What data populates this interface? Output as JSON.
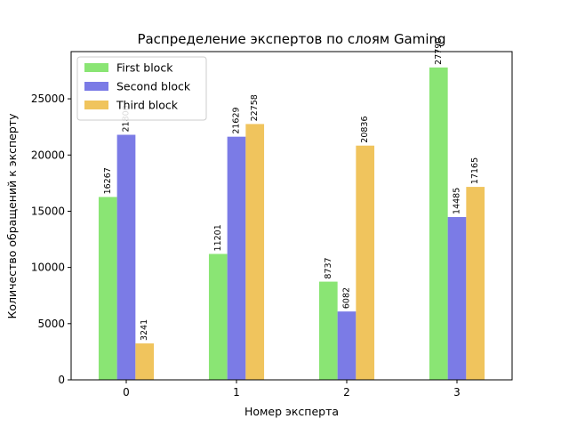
{
  "chart_data": {
    "type": "bar",
    "title": "Распределение экспертов по слоям Gaming",
    "xlabel": "Номер эксперта",
    "ylabel": "Количество обращений к эксперту",
    "categories": [
      "0",
      "1",
      "2",
      "3"
    ],
    "ylim": [
      0,
      29200
    ],
    "yticks": [
      0,
      5000,
      10000,
      15000,
      20000,
      25000
    ],
    "ytick_labels": [
      "0",
      "5000",
      "10000",
      "15000",
      "20000",
      "25000"
    ],
    "grid": false,
    "legend_position": "top-left",
    "series": [
      {
        "name": "First block",
        "color": "#8ae574",
        "values": [
          16267,
          11201,
          8737,
          27790
        ],
        "value_labels": [
          "16267",
          "11201",
          "8737",
          "27790"
        ]
      },
      {
        "name": "Second block",
        "color": "#7b7be6",
        "values": [
          21800,
          21629,
          6082,
          14485
        ],
        "value_labels": [
          "21800",
          "21629",
          "6082",
          "14485"
        ]
      },
      {
        "name": "Third block",
        "color": "#f0c45d",
        "values": [
          3241,
          22758,
          20836,
          17165
        ],
        "value_labels": [
          "3241",
          "22758",
          "20836",
          "17165"
        ]
      }
    ]
  }
}
